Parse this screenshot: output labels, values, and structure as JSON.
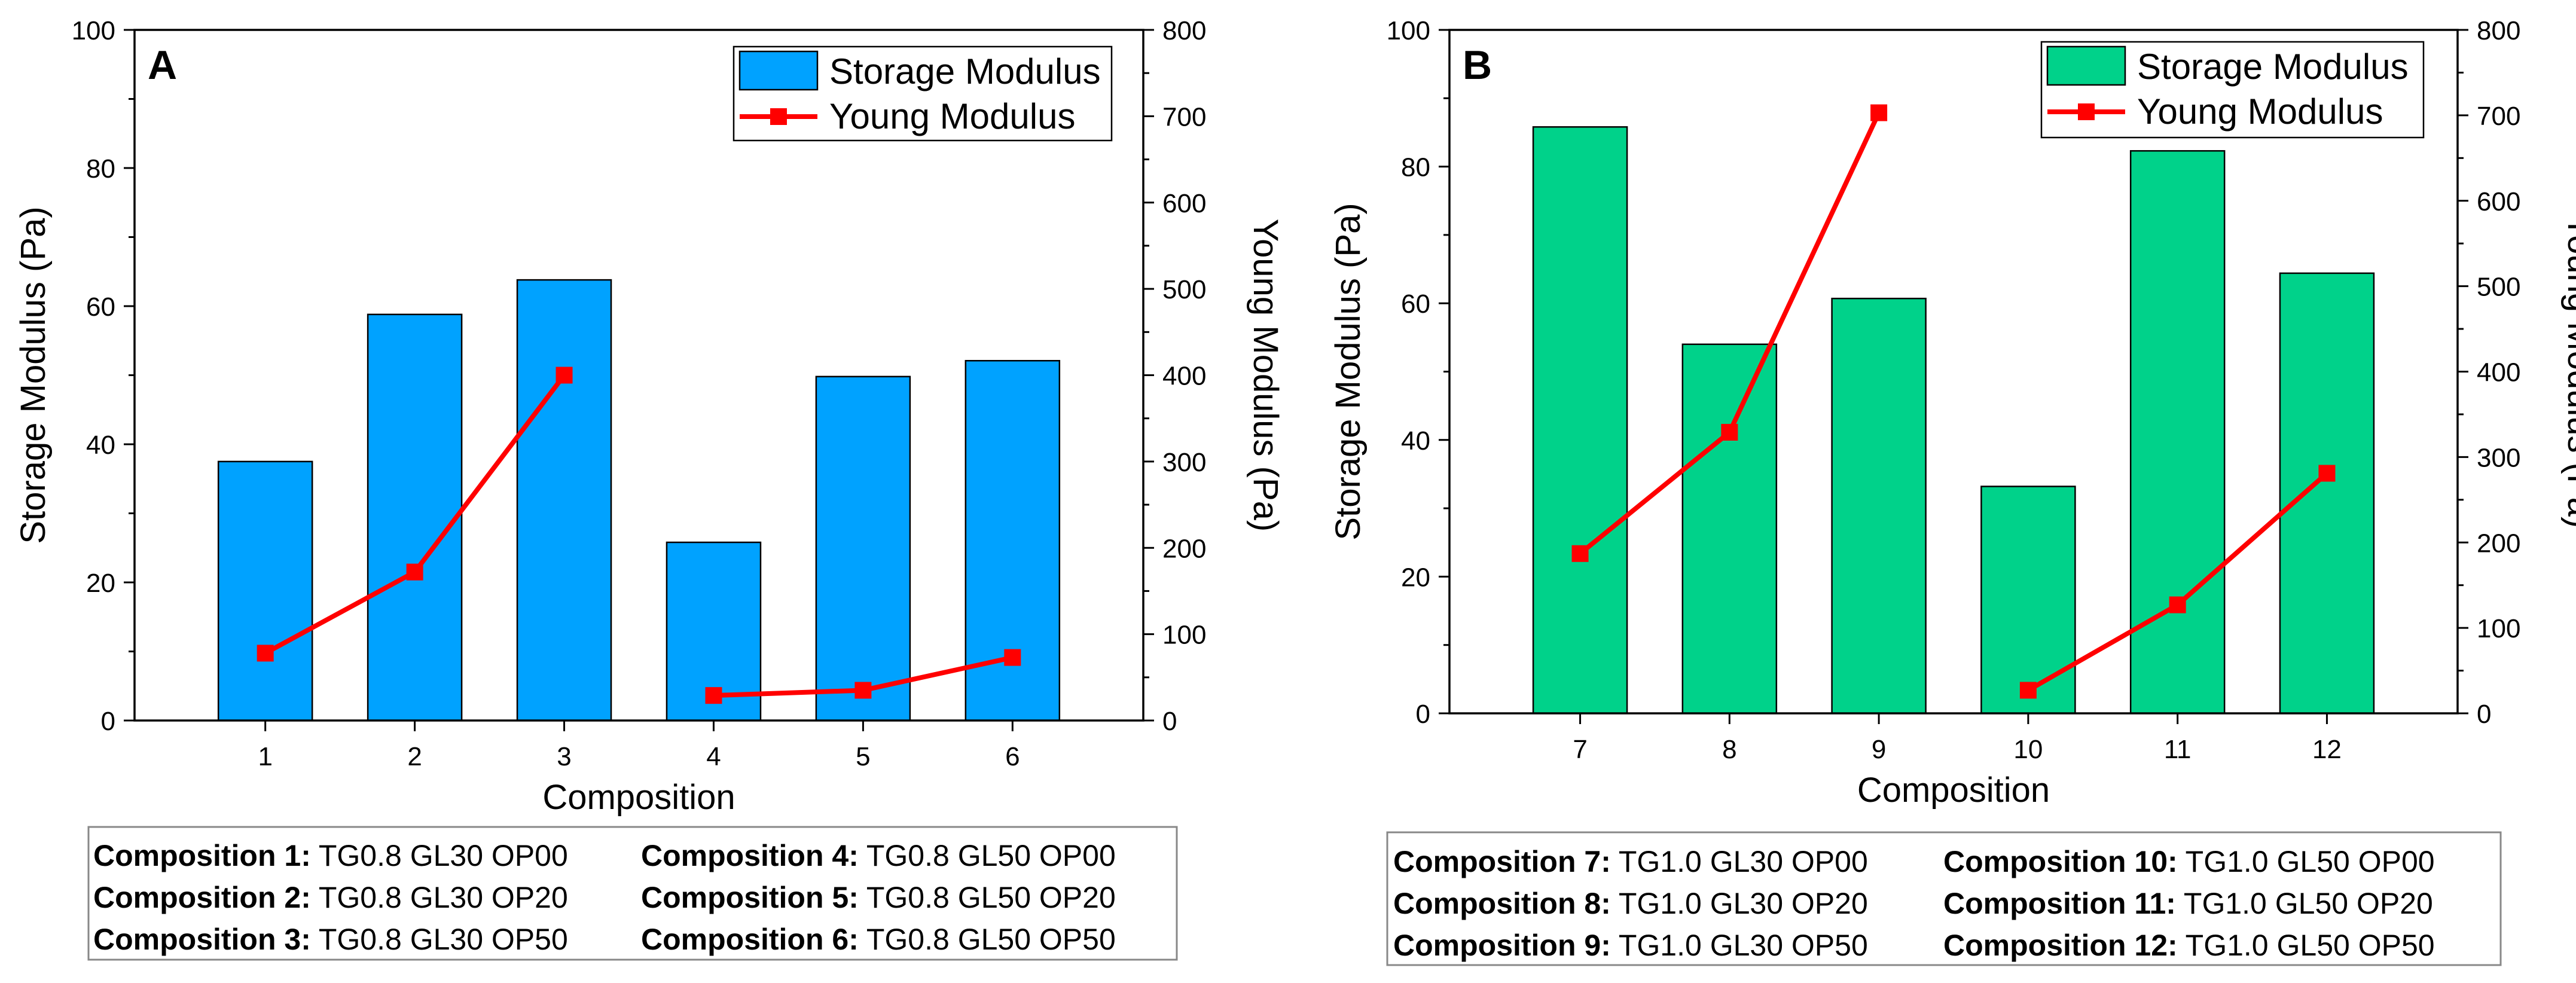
{
  "colors": {
    "bar_a": "#00a2ff",
    "bar_b": "#00d28a",
    "line": "#ff0000"
  },
  "chart_data": [
    {
      "panel": "A",
      "type": "bar",
      "xlabel": "Composition",
      "ylabel": "Storage Modulus (Pa)",
      "y2label": "Young Modulus (Pa)",
      "categories": [
        "1",
        "2",
        "3",
        "4",
        "5",
        "6"
      ],
      "ylim": [
        0,
        100
      ],
      "y2lim": [
        0,
        800
      ],
      "yticks": [
        "0",
        "20",
        "40",
        "60",
        "80",
        "100"
      ],
      "y2ticks": [
        "0",
        "100",
        "200",
        "300",
        "400",
        "500",
        "600",
        "700",
        "800"
      ],
      "legend_position": "top-right",
      "series": [
        {
          "name": "Storage Modulus",
          "kind": "bar",
          "axis": "left",
          "values": [
            37.5,
            58.8,
            63.8,
            25.8,
            49.8,
            52.1
          ]
        },
        {
          "name": "Young Modulus",
          "kind": "line",
          "axis": "right",
          "segments": [
            [
              1,
              2,
              3
            ],
            [
              4,
              5,
              6
            ]
          ],
          "values": [
            78,
            172,
            400,
            29,
            35,
            73
          ]
        }
      ],
      "compositions": [
        [
          {
            "label": "Composition 1:",
            "desc": "TG0.8 GL30 OP00"
          },
          {
            "label": "Composition 4:",
            "desc": "TG0.8 GL50 OP00"
          }
        ],
        [
          {
            "label": "Composition 2:",
            "desc": "TG0.8 GL30 OP20"
          },
          {
            "label": "Composition 5:",
            "desc": "TG0.8 GL50 OP20"
          }
        ],
        [
          {
            "label": "Composition 3:",
            "desc": "TG0.8 GL30 OP50"
          },
          {
            "label": "Composition 6:",
            "desc": "TG0.8 GL50 OP50"
          }
        ]
      ]
    },
    {
      "panel": "B",
      "type": "bar",
      "xlabel": "Composition",
      "ylabel": "Storage Modulus (Pa)",
      "y2label": "Young Modulus (Pa)",
      "categories": [
        "7",
        "8",
        "9",
        "10",
        "11",
        "12"
      ],
      "ylim": [
        0,
        100
      ],
      "y2lim": [
        0,
        800
      ],
      "yticks": [
        "0",
        "20",
        "40",
        "60",
        "80",
        "100"
      ],
      "y2ticks": [
        "0",
        "100",
        "200",
        "300",
        "400",
        "500",
        "600",
        "700",
        "800"
      ],
      "legend_position": "top-right",
      "series": [
        {
          "name": "Storage Modulus",
          "kind": "bar",
          "axis": "left",
          "values": [
            85.8,
            54.0,
            60.7,
            33.2,
            82.3,
            64.4
          ]
        },
        {
          "name": "Young Modulus",
          "kind": "line",
          "axis": "right",
          "segments": [
            [
              7,
              8,
              9
            ],
            [
              10,
              11,
              12
            ]
          ],
          "values": [
            187,
            329,
            703,
            27,
            127,
            281
          ]
        }
      ],
      "compositions": [
        [
          {
            "label": "Composition 7:",
            "desc": "TG1.0 GL30 OP00"
          },
          {
            "label": "Composition 10:",
            "desc": "TG1.0 GL50 OP00"
          }
        ],
        [
          {
            "label": "Composition 8:",
            "desc": "TG1.0 GL30 OP20"
          },
          {
            "label": "Composition 11:",
            "desc": "TG1.0 GL50 OP20"
          }
        ],
        [
          {
            "label": "Composition 9:",
            "desc": "TG1.0 GL30 OP50"
          },
          {
            "label": "Composition 12:",
            "desc": "TG1.0 GL50 OP50"
          }
        ]
      ]
    }
  ]
}
